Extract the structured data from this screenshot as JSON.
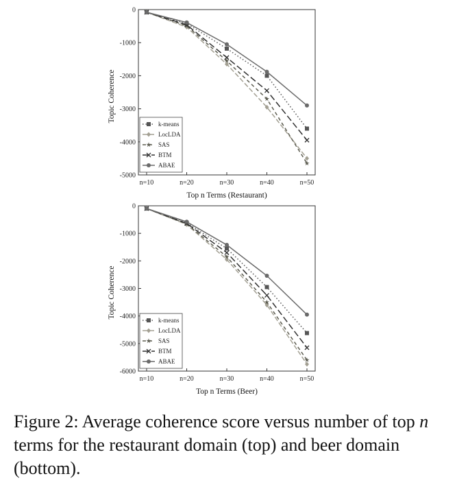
{
  "caption": {
    "prefix": "Figure 2: Average coherence score versus number of top ",
    "n": "n",
    "suffix": " terms for the restaurant domain (top) and beer domain (bottom)."
  },
  "styles": {
    "k-means": {
      "color": "#555555",
      "dash": "1.5,3",
      "marker": "square"
    },
    "LocLDA": {
      "color": "#a3a093",
      "dash": "7,3",
      "marker": "diamond"
    },
    "SAS": {
      "color": "#5b5b4f",
      "dash": "5,4",
      "marker": "star"
    },
    "BTM": {
      "color": "#2f2f2f",
      "dash": "9,4",
      "marker": "x"
    },
    "ABAE": {
      "color": "#6a6a6a",
      "dash": "",
      "marker": "circle"
    }
  },
  "chart_data": [
    {
      "type": "line",
      "ylabel": "Topic Coherence",
      "xlabel": "Top n Terms (Restaurant)",
      "categories": [
        "n=10",
        "n=20",
        "n=30",
        "n=40",
        "n=50"
      ],
      "ylim": [
        -5000,
        0
      ],
      "yticks": [
        0,
        -1000,
        -2000,
        -3000,
        -4000,
        -5000
      ],
      "legend_position": "bottom-left",
      "grid": false,
      "series": [
        {
          "name": "k-means",
          "values": [
            -80,
            -420,
            -1180,
            -2000,
            -3600
          ]
        },
        {
          "name": "LocLDA",
          "values": [
            -80,
            -530,
            -1650,
            -2950,
            -4500
          ]
        },
        {
          "name": "SAS",
          "values": [
            -80,
            -490,
            -1550,
            -2700,
            -4650
          ]
        },
        {
          "name": "BTM",
          "values": [
            -80,
            -460,
            -1450,
            -2450,
            -3950
          ]
        },
        {
          "name": "ABAE",
          "values": [
            -80,
            -390,
            -1050,
            -1880,
            -2900
          ]
        }
      ]
    },
    {
      "type": "line",
      "ylabel": "Topic Coherence",
      "xlabel": "Top n Terms (Beer)",
      "categories": [
        "n=10",
        "n=20",
        "n=30",
        "n=40",
        "n=50"
      ],
      "ylim": [
        -6000,
        0
      ],
      "yticks": [
        0,
        -1000,
        -2000,
        -3000,
        -4000,
        -5000,
        -6000
      ],
      "legend_position": "bottom-left",
      "grid": false,
      "series": [
        {
          "name": "k-means",
          "values": [
            -100,
            -620,
            -1550,
            -2950,
            -4620
          ]
        },
        {
          "name": "LocLDA",
          "values": [
            -100,
            -680,
            -1950,
            -3600,
            -5750
          ]
        },
        {
          "name": "SAS",
          "values": [
            -100,
            -660,
            -1850,
            -3500,
            -5600
          ]
        },
        {
          "name": "BTM",
          "values": [
            -100,
            -640,
            -1700,
            -3250,
            -5150
          ]
        },
        {
          "name": "ABAE",
          "values": [
            -100,
            -580,
            -1420,
            -2540,
            -3950
          ]
        }
      ]
    }
  ]
}
